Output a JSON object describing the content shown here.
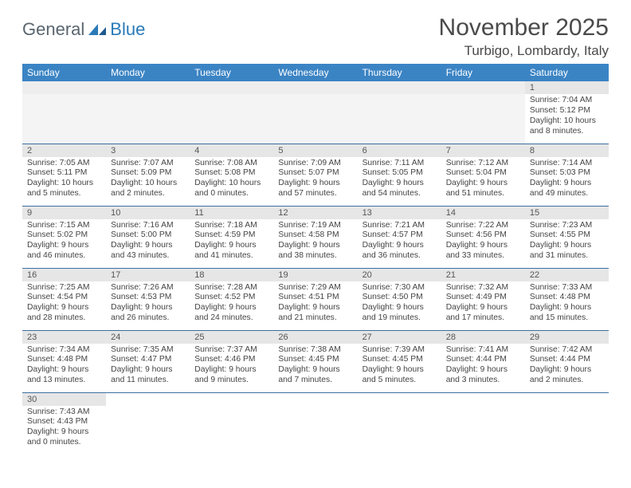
{
  "logo": {
    "text1": "General",
    "text2": "Blue"
  },
  "title": "November 2025",
  "location": "Turbigo, Lombardy, Italy",
  "colors": {
    "header_bg": "#3b84c4",
    "header_text": "#ffffff",
    "daynum_bg": "#e6e6e6",
    "row_border": "#3b6fa0",
    "logo_gray": "#5a6670",
    "logo_blue": "#2a7ab8"
  },
  "weekdays": [
    "Sunday",
    "Monday",
    "Tuesday",
    "Wednesday",
    "Thursday",
    "Friday",
    "Saturday"
  ],
  "weeks": [
    [
      null,
      null,
      null,
      null,
      null,
      null,
      {
        "n": "1",
        "sr": "7:04 AM",
        "ss": "5:12 PM",
        "dl": "10 hours and 8 minutes."
      }
    ],
    [
      {
        "n": "2",
        "sr": "7:05 AM",
        "ss": "5:11 PM",
        "dl": "10 hours and 5 minutes."
      },
      {
        "n": "3",
        "sr": "7:07 AM",
        "ss": "5:09 PM",
        "dl": "10 hours and 2 minutes."
      },
      {
        "n": "4",
        "sr": "7:08 AM",
        "ss": "5:08 PM",
        "dl": "10 hours and 0 minutes."
      },
      {
        "n": "5",
        "sr": "7:09 AM",
        "ss": "5:07 PM",
        "dl": "9 hours and 57 minutes."
      },
      {
        "n": "6",
        "sr": "7:11 AM",
        "ss": "5:05 PM",
        "dl": "9 hours and 54 minutes."
      },
      {
        "n": "7",
        "sr": "7:12 AM",
        "ss": "5:04 PM",
        "dl": "9 hours and 51 minutes."
      },
      {
        "n": "8",
        "sr": "7:14 AM",
        "ss": "5:03 PM",
        "dl": "9 hours and 49 minutes."
      }
    ],
    [
      {
        "n": "9",
        "sr": "7:15 AM",
        "ss": "5:02 PM",
        "dl": "9 hours and 46 minutes."
      },
      {
        "n": "10",
        "sr": "7:16 AM",
        "ss": "5:00 PM",
        "dl": "9 hours and 43 minutes."
      },
      {
        "n": "11",
        "sr": "7:18 AM",
        "ss": "4:59 PM",
        "dl": "9 hours and 41 minutes."
      },
      {
        "n": "12",
        "sr": "7:19 AM",
        "ss": "4:58 PM",
        "dl": "9 hours and 38 minutes."
      },
      {
        "n": "13",
        "sr": "7:21 AM",
        "ss": "4:57 PM",
        "dl": "9 hours and 36 minutes."
      },
      {
        "n": "14",
        "sr": "7:22 AM",
        "ss": "4:56 PM",
        "dl": "9 hours and 33 minutes."
      },
      {
        "n": "15",
        "sr": "7:23 AM",
        "ss": "4:55 PM",
        "dl": "9 hours and 31 minutes."
      }
    ],
    [
      {
        "n": "16",
        "sr": "7:25 AM",
        "ss": "4:54 PM",
        "dl": "9 hours and 28 minutes."
      },
      {
        "n": "17",
        "sr": "7:26 AM",
        "ss": "4:53 PM",
        "dl": "9 hours and 26 minutes."
      },
      {
        "n": "18",
        "sr": "7:28 AM",
        "ss": "4:52 PM",
        "dl": "9 hours and 24 minutes."
      },
      {
        "n": "19",
        "sr": "7:29 AM",
        "ss": "4:51 PM",
        "dl": "9 hours and 21 minutes."
      },
      {
        "n": "20",
        "sr": "7:30 AM",
        "ss": "4:50 PM",
        "dl": "9 hours and 19 minutes."
      },
      {
        "n": "21",
        "sr": "7:32 AM",
        "ss": "4:49 PM",
        "dl": "9 hours and 17 minutes."
      },
      {
        "n": "22",
        "sr": "7:33 AM",
        "ss": "4:48 PM",
        "dl": "9 hours and 15 minutes."
      }
    ],
    [
      {
        "n": "23",
        "sr": "7:34 AM",
        "ss": "4:48 PM",
        "dl": "9 hours and 13 minutes."
      },
      {
        "n": "24",
        "sr": "7:35 AM",
        "ss": "4:47 PM",
        "dl": "9 hours and 11 minutes."
      },
      {
        "n": "25",
        "sr": "7:37 AM",
        "ss": "4:46 PM",
        "dl": "9 hours and 9 minutes."
      },
      {
        "n": "26",
        "sr": "7:38 AM",
        "ss": "4:45 PM",
        "dl": "9 hours and 7 minutes."
      },
      {
        "n": "27",
        "sr": "7:39 AM",
        "ss": "4:45 PM",
        "dl": "9 hours and 5 minutes."
      },
      {
        "n": "28",
        "sr": "7:41 AM",
        "ss": "4:44 PM",
        "dl": "9 hours and 3 minutes."
      },
      {
        "n": "29",
        "sr": "7:42 AM",
        "ss": "4:44 PM",
        "dl": "9 hours and 2 minutes."
      }
    ],
    [
      {
        "n": "30",
        "sr": "7:43 AM",
        "ss": "4:43 PM",
        "dl": "9 hours and 0 minutes."
      },
      null,
      null,
      null,
      null,
      null,
      null
    ]
  ],
  "labels": {
    "sunrise": "Sunrise:",
    "sunset": "Sunset:",
    "daylight": "Daylight:"
  }
}
